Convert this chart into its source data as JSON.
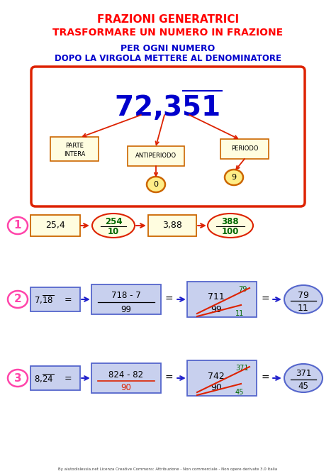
{
  "title1": "FRAZIONI GENERATRICI",
  "title2": "TRASFORMARE UN NUMERO IN FRAZIONE",
  "subtitle1": "PER OGNI NUMERO",
  "subtitle2": "DOPO LA VIRGOLA METTERE AL DENOMINATORE",
  "bg_color": "#ffffff",
  "title_color": "#ff0000",
  "subtitle_color": "#0000cc",
  "box_fill": "#fffde0",
  "orange_edge": "#cc6600",
  "red_edge": "#dd2200",
  "blue_edge": "#5566cc",
  "blue_fill": "#c8d0ee",
  "pink_color": "#ff44aa",
  "green_color": "#006600",
  "footer": "By aiutodislessia.net Licenza Creative Commons: Attribuzione - Non commerciale - Non opere derivate 3.0 Italia"
}
